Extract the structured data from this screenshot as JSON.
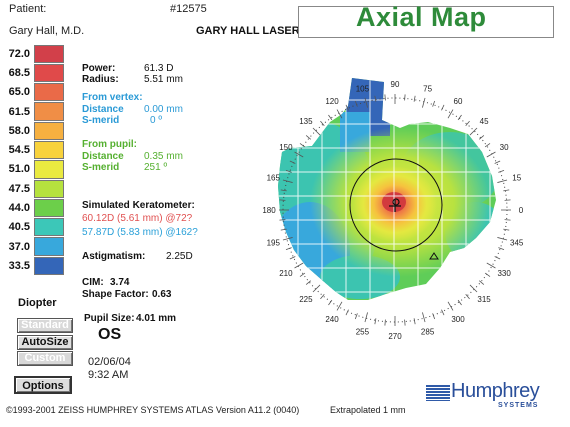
{
  "header": {
    "patient_label": "Patient:",
    "patient_id": "#12575",
    "doctor": "Gary Hall, M.D.",
    "center": "GARY HALL LASER CENTER",
    "map_title": "Axial Map"
  },
  "scale": {
    "unit_label": "Diopter",
    "steps": [
      {
        "value": "72.0",
        "color": "#d2404a"
      },
      {
        "value": "68.5",
        "color": "#e04a4a"
      },
      {
        "value": "65.0",
        "color": "#ea6a48"
      },
      {
        "value": "61.5",
        "color": "#f08e46"
      },
      {
        "value": "58.0",
        "color": "#f6b040"
      },
      {
        "value": "54.5",
        "color": "#f8d23c"
      },
      {
        "value": "51.0",
        "color": "#eaea40"
      },
      {
        "value": "47.5",
        "color": "#b6e23e"
      },
      {
        "value": "44.0",
        "color": "#6ccf4a"
      },
      {
        "value": "40.5",
        "color": "#3cc7b8"
      },
      {
        "value": "37.0",
        "color": "#38a8dc"
      },
      {
        "value": "33.5",
        "color": "#3466b8"
      }
    ]
  },
  "buttons": {
    "standard": "Standard",
    "autosize": "AutoSize",
    "custom": "Custom",
    "options": "Options"
  },
  "info": {
    "power_label": "Power:",
    "power_value": "61.3 D",
    "radius_label": "Radius:",
    "radius_value": "5.51 mm",
    "from_vertex_label": "From vertex:",
    "vertex_distance_label": "Distance",
    "vertex_distance_value": "0.00 mm",
    "vertex_smerid_label": "S-merid",
    "vertex_smerid_value": "0 º",
    "from_pupil_label": "From pupil:",
    "pupil_distance_label": "Distance",
    "pupil_distance_value": "0.35 mm",
    "pupil_smerid_label": "S-merid",
    "pupil_smerid_value": "251 º",
    "simk_label": "Simulated Keratometer:",
    "simk_steep": "60.12D (5.61 mm) @72?",
    "simk_flat": "57.87D (5.83 mm) @162?",
    "astig_label": "Astigmatism:",
    "astig_value": "2.25D",
    "cim_label": "CIM:",
    "cim_value": "3.74",
    "shape_label": "Shape Factor:",
    "shape_value": "0.63",
    "pupil_size_label": "Pupil Size:",
    "pupil_size_value": "4.01 mm",
    "eye": "OS",
    "date": "02/06/04",
    "time": "9:32 AM"
  },
  "footer": {
    "copyright": "©1993-2001 ZEISS HUMPHREY SYSTEMS ATLAS  Version A11.2 (0040)",
    "extrapolated": "Extrapolated 1 mm",
    "brand": "Humphrey",
    "brand_sub": "SYSTEMS"
  },
  "map": {
    "angle_labels": [
      "90",
      "75",
      "60",
      "45",
      "30",
      "15",
      "0",
      "345",
      "330",
      "315",
      "300",
      "285",
      "270",
      "255",
      "240",
      "225",
      "210",
      "195",
      "180",
      "165",
      "150",
      "135",
      "120",
      "105"
    ]
  }
}
